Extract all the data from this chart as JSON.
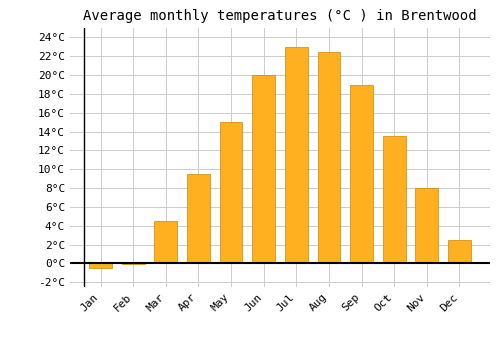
{
  "title": "Average monthly temperatures (°C ) in Brentwood",
  "months": [
    "Jan",
    "Feb",
    "Mar",
    "Apr",
    "May",
    "Jun",
    "Jul",
    "Aug",
    "Sep",
    "Oct",
    "Nov",
    "Dec"
  ],
  "values": [
    -0.5,
    -0.1,
    4.5,
    9.5,
    15.0,
    20.0,
    23.0,
    22.5,
    19.0,
    13.5,
    8.0,
    2.5
  ],
  "bar_color": "#FFB020",
  "bar_edge_color": "#CC8800",
  "ylim": [
    -2.5,
    25
  ],
  "yticks": [
    -2,
    0,
    2,
    4,
    6,
    8,
    10,
    12,
    14,
    16,
    18,
    20,
    22,
    24
  ],
  "background_color": "#ffffff",
  "grid_color": "#cccccc",
  "title_fontsize": 10,
  "tick_fontsize": 8,
  "font_family": "monospace"
}
